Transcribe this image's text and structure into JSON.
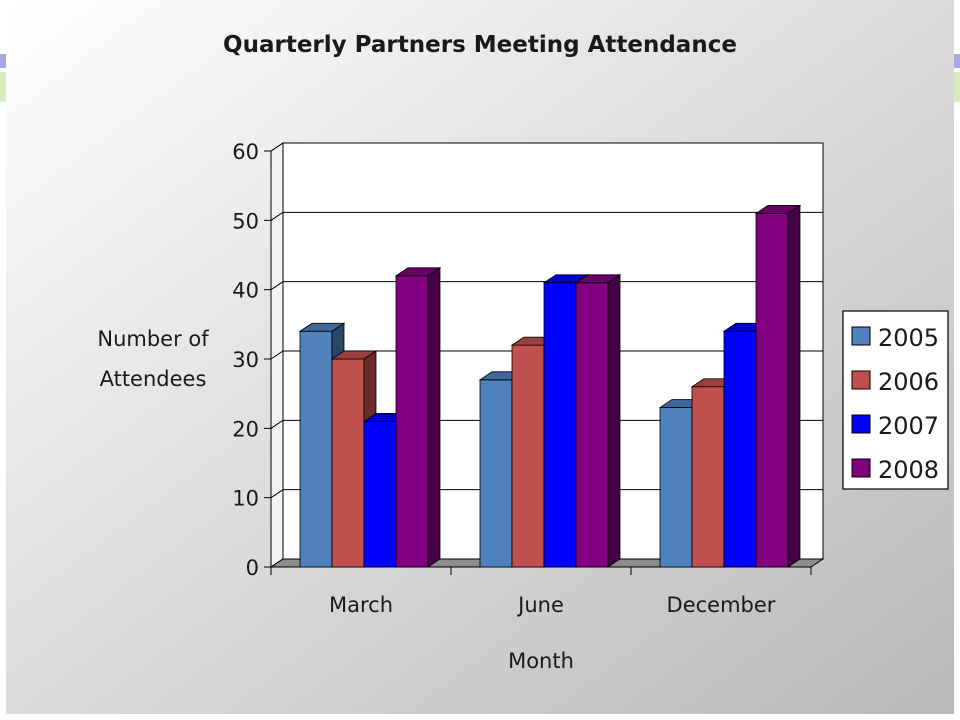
{
  "chart_data": {
    "type": "bar",
    "title": "Quarterly Partners Meeting Attendance",
    "xlabel": "Month",
    "ylabel_lines": [
      "Number of",
      "Attendees"
    ],
    "categories": [
      "March",
      "June",
      "December"
    ],
    "series": [
      {
        "name": "2005",
        "values": [
          34,
          27,
          23
        ],
        "color": "#4f81bd"
      },
      {
        "name": "2006",
        "values": [
          30,
          32,
          26
        ],
        "color": "#c0504d"
      },
      {
        "name": "2007",
        "values": [
          21,
          41,
          34
        ],
        "color": "#0000ff"
      },
      {
        "name": "2008",
        "values": [
          42,
          41,
          51
        ],
        "color": "#800080"
      }
    ],
    "ylim": [
      0,
      60
    ],
    "yticks": [
      0,
      10,
      20,
      30,
      40,
      50,
      60
    ],
    "grid": true,
    "legend_position": "right",
    "style": "3d-clustered-column"
  },
  "colors": {
    "background_gradient": [
      "#ffffff",
      "#bdbdbd"
    ],
    "wall": "#ffffff",
    "floor": "#8c8c8c",
    "gridline": "#000000",
    "accent_left_edge": "#a9a9ff"
  }
}
